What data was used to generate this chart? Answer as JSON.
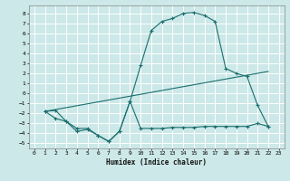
{
  "title": "",
  "xlabel": "Humidex (Indice chaleur)",
  "bg_color": "#cce8e8",
  "grid_color": "#ffffff",
  "line_color": "#1a6e6e",
  "xlim": [
    -0.5,
    23.5
  ],
  "ylim": [
    -5.5,
    8.8
  ],
  "yticks": [
    -5,
    -4,
    -3,
    -2,
    -1,
    0,
    1,
    2,
    3,
    4,
    5,
    6,
    7,
    8
  ],
  "xticks": [
    0,
    1,
    2,
    3,
    4,
    5,
    6,
    7,
    8,
    9,
    10,
    11,
    12,
    13,
    14,
    15,
    16,
    17,
    18,
    19,
    20,
    21,
    22,
    23
  ],
  "curve1_x": [
    1,
    2,
    3,
    4,
    5,
    6,
    7,
    8,
    9,
    10,
    11,
    12,
    13,
    14,
    15,
    16,
    17,
    18,
    19,
    20,
    21,
    22
  ],
  "curve1_y": [
    -1.8,
    -1.7,
    -2.8,
    -3.8,
    -3.6,
    -4.2,
    -4.8,
    -3.8,
    -0.8,
    2.8,
    6.3,
    7.2,
    7.5,
    8.0,
    8.1,
    7.8,
    7.2,
    2.5,
    2.0,
    1.7,
    -1.2,
    -3.3
  ],
  "curve2_x": [
    1,
    22
  ],
  "curve2_y": [
    -1.8,
    2.2
  ],
  "curve3_x": [
    1,
    2,
    3,
    4,
    5,
    6,
    7,
    8,
    9,
    10,
    11,
    12,
    13,
    14,
    15,
    16,
    17,
    18,
    19,
    20,
    21,
    22
  ],
  "curve3_y": [
    -1.8,
    -2.5,
    -2.8,
    -3.5,
    -3.5,
    -4.2,
    -4.8,
    -3.8,
    -0.8,
    -3.5,
    -3.5,
    -3.5,
    -3.4,
    -3.4,
    -3.4,
    -3.3,
    -3.3,
    -3.3,
    -3.3,
    -3.3,
    -3.0,
    -3.3
  ]
}
